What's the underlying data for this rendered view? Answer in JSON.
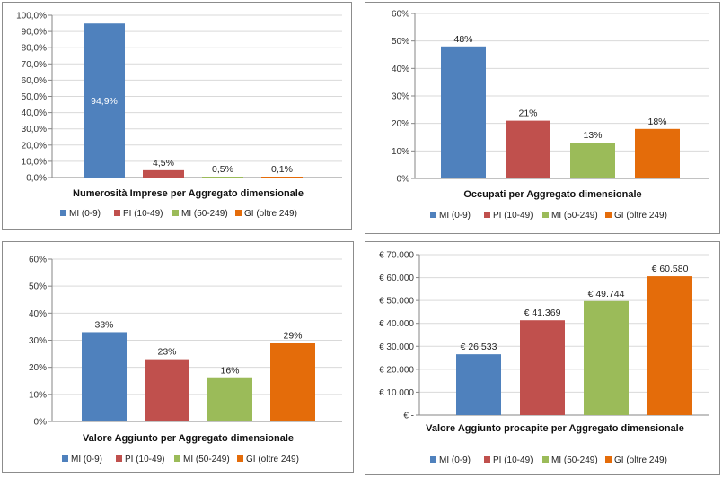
{
  "colors": {
    "MI_0_9": "#4f81bd",
    "PI_10_49": "#c0504d",
    "MI_50_249": "#9bbb59",
    "GI_oltre_249": "#e46c0a",
    "grid": "#d9d9d9",
    "axis": "#868686",
    "data_label_inside": "#ffffff",
    "data_label": "#222222"
  },
  "legend_entries": [
    "MI (0-9)",
    "PI (10-49)",
    "MI (50-249)",
    "GI (oltre 249)"
  ],
  "chart_data": [
    {
      "type": "bar",
      "title": "Numerosità Imprese per Aggregato dimensionale",
      "xlabel": "",
      "ylabel": "",
      "categories": [
        "MI (0-9)",
        "PI (10-49)",
        "MI (50-249)",
        "GI (oltre 249)"
      ],
      "values": [
        94.9,
        4.5,
        0.5,
        0.1
      ],
      "data_labels": [
        "94,9%",
        "4,5%",
        "0,5%",
        "0,1%"
      ],
      "ylim": [
        0,
        100
      ],
      "ytick_values": [
        0,
        10,
        20,
        30,
        40,
        50,
        60,
        70,
        80,
        90,
        100
      ],
      "ytick_labels": [
        "0,0%",
        "10,0%",
        "20,0%",
        "30,0%",
        "40,0%",
        "50,0%",
        "60,0%",
        "70,0%",
        "80,0%",
        "90,0%",
        "100,0%"
      ],
      "grid": true,
      "legend": "bottom"
    },
    {
      "type": "bar",
      "title": "Occupati per Aggregato dimensionale",
      "xlabel": "",
      "ylabel": "",
      "categories": [
        "MI (0-9)",
        "PI (10-49)",
        "MI (50-249)",
        "GI (oltre 249)"
      ],
      "values": [
        48,
        21,
        13,
        18
      ],
      "data_labels": [
        "48%",
        "21%",
        "13%",
        "18%"
      ],
      "ylim": [
        0,
        60
      ],
      "ytick_values": [
        0,
        10,
        20,
        30,
        40,
        50,
        60
      ],
      "ytick_labels": [
        "0%",
        "10%",
        "20%",
        "30%",
        "40%",
        "50%",
        "60%"
      ],
      "grid": true,
      "legend": "bottom"
    },
    {
      "type": "bar",
      "title": "Valore Aggiunto per Aggregato dimensionale",
      "xlabel": "",
      "ylabel": "",
      "categories": [
        "MI (0-9)",
        "PI (10-49)",
        "MI (50-249)",
        "GI (oltre 249)"
      ],
      "values": [
        33,
        23,
        16,
        29
      ],
      "data_labels": [
        "33%",
        "23%",
        "16%",
        "29%"
      ],
      "ylim": [
        0,
        60
      ],
      "ytick_values": [
        0,
        10,
        20,
        30,
        40,
        50,
        60
      ],
      "ytick_labels": [
        "0%",
        "10%",
        "20%",
        "30%",
        "40%",
        "50%",
        "60%"
      ],
      "grid": true,
      "legend": "bottom"
    },
    {
      "type": "bar",
      "title": "Valore Aggiunto procapite per Aggregato dimensionale",
      "xlabel": "",
      "ylabel": "",
      "categories": [
        "MI (0-9)",
        "PI (10-49)",
        "MI (50-249)",
        "GI (oltre 249)"
      ],
      "values": [
        26533,
        41369,
        49744,
        60580
      ],
      "data_labels": [
        "€ 26.533",
        "€ 41.369",
        "€ 49.744",
        "€ 60.580"
      ],
      "ylim": [
        0,
        70000
      ],
      "ytick_values": [
        0,
        10000,
        20000,
        30000,
        40000,
        50000,
        60000,
        70000
      ],
      "ytick_labels": [
        "€ -",
        "€ 10.000",
        "€ 20.000",
        "€ 30.000",
        "€ 40.000",
        "€ 50.000",
        "€ 60.000",
        "€ 70.000"
      ],
      "grid": true,
      "legend": "bottom"
    }
  ]
}
